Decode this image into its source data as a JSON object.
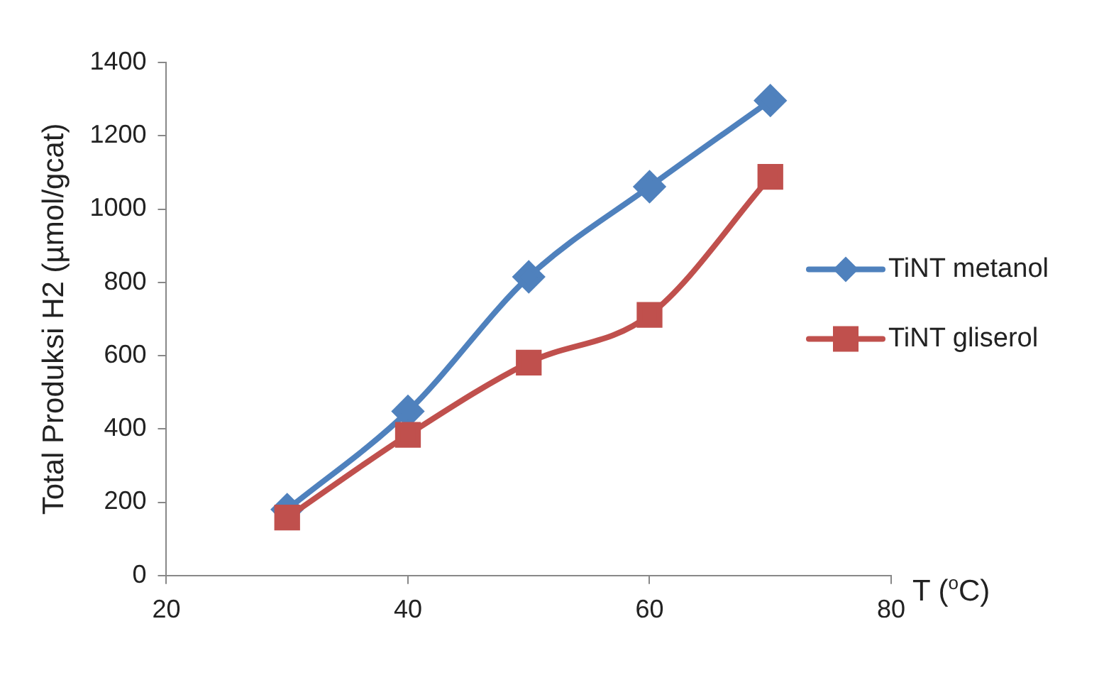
{
  "chart_data": {
    "type": "line",
    "xlabel": "T  ($^{o}$C)",
    "ylabel": "Total Produksi H2 (µmol/gcat)",
    "x": [
      30,
      40,
      50,
      60,
      70
    ],
    "series": [
      {
        "name": "TiNT metanol",
        "color": "#4f81bd",
        "marker": "diamond",
        "values": [
          180,
          448,
          815,
          1061,
          1296
        ]
      },
      {
        "name": "TiNT gliserol",
        "color": "#c0504d",
        "marker": "square",
        "values": [
          158,
          384,
          581,
          711,
          1088
        ]
      }
    ],
    "xlim": [
      20,
      80
    ],
    "xticks": [
      20,
      40,
      60,
      80
    ],
    "ylim": [
      0,
      1400
    ],
    "yticks": [
      0,
      200,
      400,
      600,
      800,
      1000,
      1200,
      1400
    ],
    "grid": false,
    "legend": "right",
    "line_style": "solid"
  }
}
